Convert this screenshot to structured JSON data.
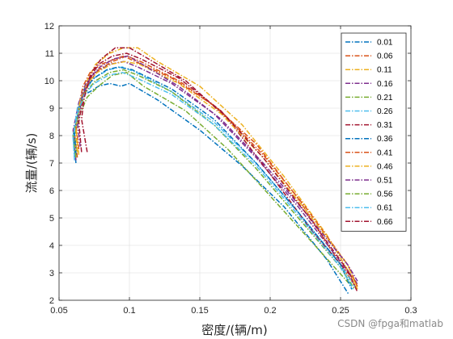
{
  "watermark": "CSDN @fpga和matlab",
  "chart_data": {
    "type": "line",
    "title": "",
    "xlabel": "密度/(辆/m)",
    "ylabel": "流量/(辆/s)",
    "xlim": [
      0.05,
      0.3
    ],
    "ylim": [
      2,
      12
    ],
    "xticks": [
      "0.05",
      "0.1",
      "0.15",
      "0.2",
      "0.25",
      "0.3"
    ],
    "yticks": [
      "2",
      "3",
      "4",
      "5",
      "6",
      "7",
      "8",
      "9",
      "10",
      "11",
      "12"
    ],
    "grid": true,
    "legend_position": "top-right",
    "line_style": "dash-dot",
    "series": [
      {
        "name": "0.01",
        "color": "#0072BD",
        "x": [
          0.062,
          0.06,
          0.064,
          0.066,
          0.068,
          0.072,
          0.078,
          0.086,
          0.094,
          0.1,
          0.12,
          0.15,
          0.18,
          0.21,
          0.24,
          0.256
        ],
        "y": [
          7.0,
          8.0,
          8.9,
          9.4,
          9.5,
          9.6,
          9.8,
          9.9,
          9.8,
          9.9,
          9.3,
          8.2,
          6.9,
          5.4,
          3.5,
          2.2
        ]
      },
      {
        "name": "0.06",
        "color": "#D95319",
        "x": [
          0.063,
          0.061,
          0.064,
          0.067,
          0.072,
          0.08,
          0.09,
          0.096,
          0.104,
          0.13,
          0.16,
          0.19,
          0.22,
          0.25,
          0.262
        ],
        "y": [
          7.2,
          8.1,
          9.1,
          9.8,
          10.3,
          10.6,
          10.8,
          10.9,
          10.7,
          10.1,
          9.1,
          7.7,
          5.7,
          3.3,
          2.4
        ]
      },
      {
        "name": "0.11",
        "color": "#EDB120",
        "x": [
          0.064,
          0.062,
          0.066,
          0.07,
          0.076,
          0.086,
          0.096,
          0.106,
          0.12,
          0.15,
          0.18,
          0.21,
          0.24,
          0.262
        ],
        "y": [
          7.3,
          8.3,
          9.4,
          10.0,
          10.6,
          11.0,
          11.2,
          11.2,
          10.7,
          9.8,
          8.4,
          6.5,
          4.4,
          2.5
        ]
      },
      {
        "name": "0.16",
        "color": "#7E2F8E",
        "x": [
          0.062,
          0.06,
          0.064,
          0.069,
          0.076,
          0.086,
          0.096,
          0.106,
          0.13,
          0.16,
          0.19,
          0.22,
          0.25,
          0.262
        ],
        "y": [
          7.1,
          8.2,
          9.2,
          9.9,
          10.3,
          10.6,
          10.7,
          10.5,
          9.9,
          8.8,
          7.2,
          5.4,
          3.4,
          2.6
        ]
      },
      {
        "name": "0.21",
        "color": "#77AC30",
        "x": [
          0.063,
          0.061,
          0.065,
          0.07,
          0.078,
          0.088,
          0.098,
          0.11,
          0.14,
          0.17,
          0.2,
          0.23,
          0.258
        ],
        "y": [
          7.4,
          8.0,
          8.8,
          9.4,
          9.8,
          10.2,
          10.3,
          9.8,
          8.9,
          7.5,
          5.8,
          4.1,
          2.5
        ]
      },
      {
        "name": "0.26",
        "color": "#4DBEEE",
        "x": [
          0.061,
          0.06,
          0.063,
          0.068,
          0.075,
          0.085,
          0.095,
          0.105,
          0.13,
          0.16,
          0.19,
          0.22,
          0.25,
          0.26
        ],
        "y": [
          7.2,
          8.0,
          9.0,
          9.6,
          10.1,
          10.4,
          10.5,
          10.3,
          9.6,
          8.5,
          7.0,
          5.2,
          3.3,
          2.5
        ]
      },
      {
        "name": "0.31",
        "color": "#A2142F",
        "x": [
          0.066,
          0.064,
          0.068,
          0.073,
          0.08,
          0.09,
          0.1,
          0.11,
          0.14,
          0.17,
          0.2,
          0.23,
          0.262
        ],
        "y": [
          7.4,
          8.5,
          9.6,
          10.3,
          10.8,
          11.2,
          11.2,
          10.9,
          10.0,
          8.6,
          6.6,
          4.5,
          2.6
        ]
      },
      {
        "name": "0.36",
        "color": "#0072BD",
        "x": [
          0.062,
          0.061,
          0.064,
          0.068,
          0.075,
          0.084,
          0.092,
          0.102,
          0.13,
          0.16,
          0.19,
          0.22,
          0.25,
          0.258
        ],
        "y": [
          7.3,
          8.1,
          9.0,
          9.7,
          10.1,
          10.4,
          10.5,
          10.4,
          9.7,
          8.6,
          7.0,
          5.2,
          3.3,
          2.4
        ]
      },
      {
        "name": "0.41",
        "color": "#D95319",
        "x": [
          0.064,
          0.062,
          0.066,
          0.071,
          0.078,
          0.088,
          0.098,
          0.108,
          0.135,
          0.165,
          0.195,
          0.225,
          0.255,
          0.262
        ],
        "y": [
          7.5,
          8.4,
          9.3,
          9.9,
          10.4,
          10.7,
          10.9,
          10.7,
          10.0,
          8.9,
          7.3,
          5.4,
          3.3,
          2.5
        ]
      },
      {
        "name": "0.46",
        "color": "#EDB120",
        "x": [
          0.063,
          0.062,
          0.065,
          0.07,
          0.077,
          0.087,
          0.097,
          0.107,
          0.135,
          0.165,
          0.195,
          0.225,
          0.255,
          0.262
        ],
        "y": [
          7.4,
          8.3,
          9.3,
          9.9,
          10.3,
          10.6,
          10.7,
          10.6,
          9.9,
          8.8,
          7.2,
          5.3,
          3.3,
          2.4
        ]
      },
      {
        "name": "0.51",
        "color": "#7E2F8E",
        "x": [
          0.065,
          0.063,
          0.067,
          0.072,
          0.079,
          0.089,
          0.099,
          0.109,
          0.135,
          0.165,
          0.195,
          0.225,
          0.255,
          0.262
        ],
        "y": [
          7.6,
          8.5,
          9.5,
          10.1,
          10.5,
          10.8,
          10.9,
          10.6,
          9.8,
          8.6,
          7.0,
          5.2,
          3.3,
          2.7
        ]
      },
      {
        "name": "0.56",
        "color": "#77AC30",
        "x": [
          0.062,
          0.06,
          0.064,
          0.069,
          0.076,
          0.086,
          0.096,
          0.106,
          0.13,
          0.16,
          0.19,
          0.22,
          0.25,
          0.26
        ],
        "y": [
          7.2,
          8.0,
          8.9,
          9.6,
          10.0,
          10.3,
          10.4,
          10.2,
          9.6,
          8.4,
          6.8,
          5.0,
          3.2,
          2.4
        ]
      },
      {
        "name": "0.61",
        "color": "#4DBEEE",
        "x": [
          0.061,
          0.06,
          0.063,
          0.068,
          0.075,
          0.085,
          0.095,
          0.105,
          0.13,
          0.16,
          0.19,
          0.22,
          0.25,
          0.259
        ],
        "y": [
          7.1,
          7.9,
          8.8,
          9.5,
          9.9,
          10.2,
          10.3,
          10.1,
          9.5,
          8.4,
          6.9,
          5.1,
          3.2,
          2.4
        ]
      },
      {
        "name": "0.66",
        "color": "#A2142F",
        "x": [
          0.07,
          0.066,
          0.068,
          0.072,
          0.078,
          0.088,
          0.098,
          0.108,
          0.135,
          0.165,
          0.195,
          0.225,
          0.255,
          0.262
        ],
        "y": [
          7.4,
          8.6,
          9.4,
          10.1,
          10.6,
          10.9,
          11.0,
          10.8,
          10.1,
          8.9,
          7.2,
          5.2,
          3.1,
          2.3
        ]
      }
    ]
  }
}
